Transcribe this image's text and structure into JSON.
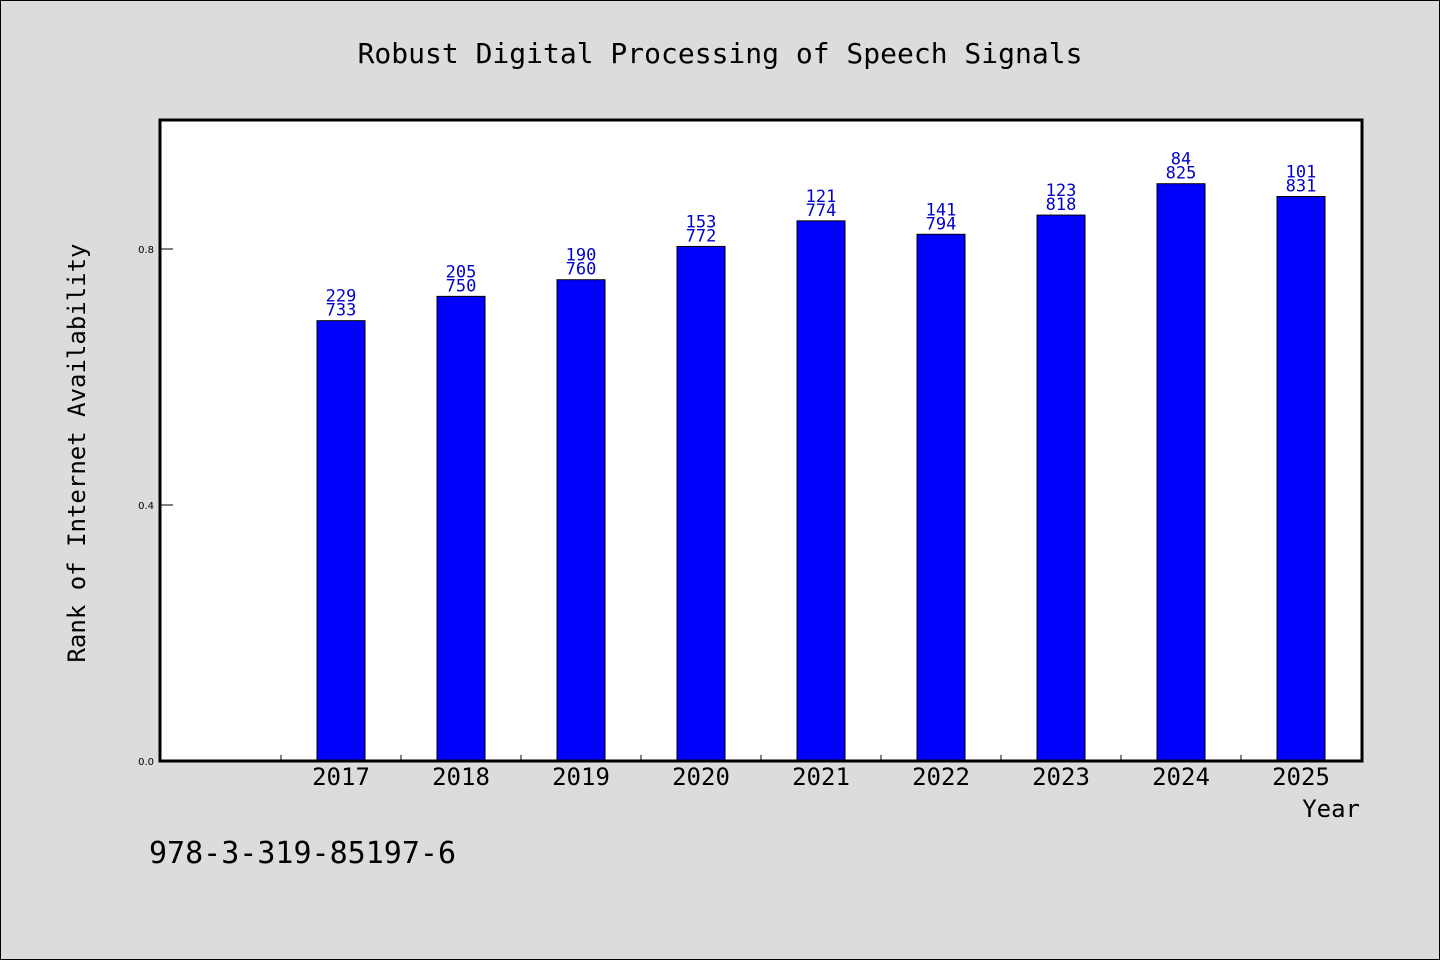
{
  "chart_data": {
    "type": "bar",
    "title": "Robust Digital Processing of Speech Signals",
    "xlabel": "Year",
    "ylabel": "Rank of Internet Availability",
    "categories": [
      "2017",
      "2018",
      "2019",
      "2020",
      "2021",
      "2022",
      "2023",
      "2024",
      "2025"
    ],
    "values": [
      0.688,
      0.726,
      0.752,
      0.804,
      0.844,
      0.823,
      0.853,
      0.902,
      0.882
    ],
    "top_labels": [
      "229",
      "205",
      "190",
      "153",
      "121",
      "141",
      "123",
      "84",
      "101"
    ],
    "bottom_labels": [
      "733",
      "750",
      "760",
      "772",
      "774",
      "794",
      "818",
      "825",
      "831"
    ],
    "ylim": [
      0.0,
      1.0
    ],
    "yticks": [
      "0.0",
      "0.4",
      "0.8"
    ],
    "grid": false,
    "legend": "none",
    "colors": {
      "bar_fill": "#0000ff",
      "bar_stroke": "#000000",
      "label_color": "#0000cc",
      "plot_background": "#ffffff",
      "page_background": "#dcdcdc"
    }
  },
  "footer": {
    "isbn": "978-3-319-85197-6"
  }
}
